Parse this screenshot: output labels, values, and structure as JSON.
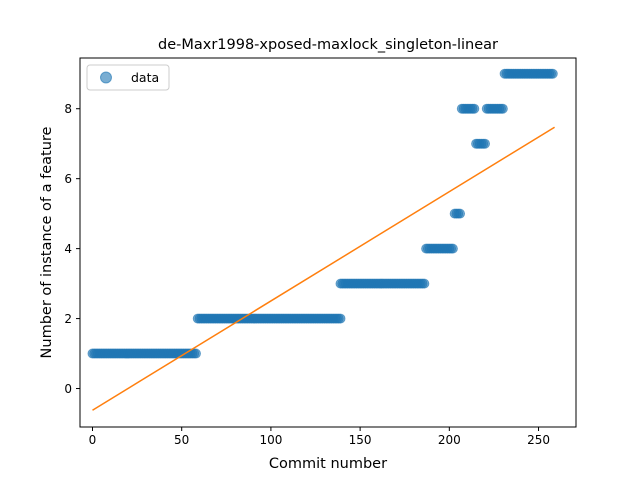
{
  "chart_data": {
    "type": "scatter",
    "title": "de-Maxr1998-xposed-maxlock_singleton-linear",
    "xlabel": "Commit number",
    "ylabel": "Number of instance of a feature",
    "xlim": [
      -7,
      271
    ],
    "ylim": [
      -1.1,
      9.45
    ],
    "x_ticks": [
      0,
      50,
      100,
      150,
      200,
      250
    ],
    "y_ticks": [
      0,
      2,
      4,
      6,
      8
    ],
    "grid": false,
    "legend": {
      "position": "top-left",
      "entries": [
        {
          "label": "data",
          "marker": "circle"
        }
      ]
    },
    "series": [
      {
        "name": "data",
        "kind": "points",
        "color": "#1f77b4",
        "segments": [
          {
            "x_start": 0,
            "x_end": 59,
            "y": 1
          },
          {
            "x_start": 59,
            "x_end": 140,
            "y": 2
          },
          {
            "x_start": 139,
            "x_end": 187,
            "y": 3
          },
          {
            "x_start": 187,
            "x_end": 203,
            "y": 4
          },
          {
            "x_start": 203,
            "x_end": 207,
            "y": 5
          },
          {
            "x_start": 207,
            "x_end": 215,
            "y": 8
          },
          {
            "x_start": 215,
            "x_end": 221,
            "y": 7
          },
          {
            "x_start": 221,
            "x_end": 231,
            "y": 8
          },
          {
            "x_start": 231,
            "x_end": 259,
            "y": 9
          }
        ]
      },
      {
        "kind": "line",
        "color": "#ff7f0e",
        "x": [
          0,
          259
        ],
        "y": [
          -0.62,
          7.47
        ]
      }
    ]
  }
}
